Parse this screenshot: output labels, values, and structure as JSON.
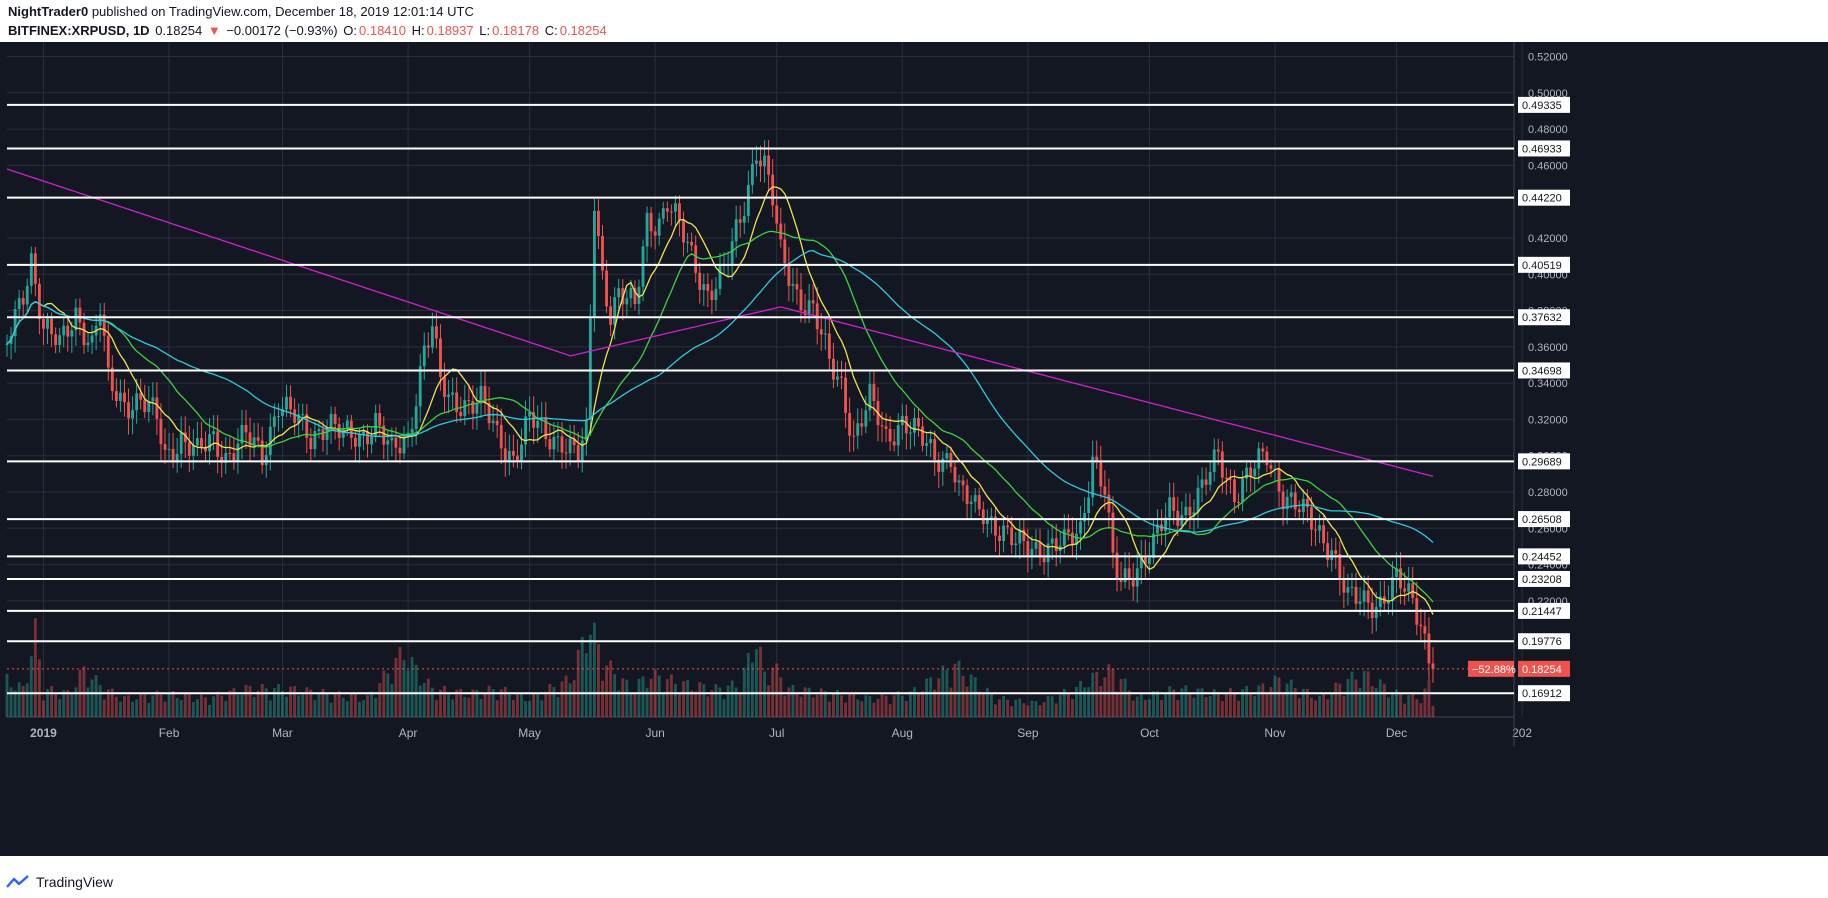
{
  "header": {
    "author": "NightTrader0",
    "published": "published on TradingView.com, December 18, 2019 12:01:14 UTC",
    "symbol": "BITFINEX:XRPUSD, 1D",
    "last": "0.18254",
    "arrow": "▼",
    "change": "−0.00172 (−0.93%)",
    "o_label": "O:",
    "o": "0.18410",
    "h_label": "H:",
    "h": "0.18937",
    "l_label": "L:",
    "l": "0.18178",
    "c_label": "C:",
    "c": "0.18254"
  },
  "footer": {
    "brand": "TradingView"
  },
  "colors": {
    "background": "#131722",
    "up": "#26a69a",
    "down": "#ef5350",
    "ma_fast": "#f2e24d",
    "ma_mid": "#3ed13e",
    "ma_slow": "#2ec9e0",
    "ma_long": "#d020d0",
    "level_line": "#ffffff",
    "price_label_bg": "#ef5350"
  },
  "chart_data": {
    "type": "candlestick",
    "ylim": [
      0.156,
      0.528
    ],
    "y_ticks": [
      "0.52000",
      "0.50000",
      "0.48000",
      "0.46000",
      "0.42000",
      "0.40000",
      "0.38000",
      "0.36000",
      "0.34000",
      "0.32000",
      "0.30000",
      "0.28000",
      "0.26000",
      "0.24000",
      "0.22000"
    ],
    "x_ticks": [
      "2019",
      "Feb",
      "Mar",
      "Apr",
      "May",
      "Jun",
      "Jul",
      "Aug",
      "Sep",
      "Oct",
      "Nov",
      "Dec",
      "202"
    ],
    "x_tick_days": [
      0,
      31,
      59,
      90,
      120,
      151,
      181,
      212,
      243,
      273,
      304,
      334,
      365
    ],
    "x_range_days": [
      -9,
      363
    ],
    "horizontal_levels": [
      "0.49335",
      "0.46933",
      "0.44220",
      "0.40519",
      "0.37632",
      "0.34698",
      "0.29689",
      "0.26508",
      "0.24452",
      "0.23208",
      "0.21447",
      "0.19776",
      "0.16912"
    ],
    "last_price_label": "0.18254",
    "change_label": "−52.88%",
    "price_path": [
      [
        -9,
        0.36
      ],
      [
        -5,
        0.39
      ],
      [
        -3,
        0.41
      ],
      [
        0,
        0.37
      ],
      [
        4,
        0.36
      ],
      [
        8,
        0.38
      ],
      [
        12,
        0.36
      ],
      [
        14,
        0.38
      ],
      [
        16,
        0.34
      ],
      [
        20,
        0.33
      ],
      [
        24,
        0.33
      ],
      [
        28,
        0.32
      ],
      [
        30,
        0.3
      ],
      [
        34,
        0.31
      ],
      [
        38,
        0.3
      ],
      [
        42,
        0.31
      ],
      [
        45,
        0.3
      ],
      [
        50,
        0.31
      ],
      [
        54,
        0.3
      ],
      [
        58,
        0.33
      ],
      [
        62,
        0.32
      ],
      [
        66,
        0.31
      ],
      [
        70,
        0.32
      ],
      [
        74,
        0.31
      ],
      [
        78,
        0.31
      ],
      [
        82,
        0.32
      ],
      [
        86,
        0.3
      ],
      [
        90,
        0.31
      ],
      [
        94,
        0.36
      ],
      [
        96,
        0.37
      ],
      [
        98,
        0.34
      ],
      [
        100,
        0.33
      ],
      [
        104,
        0.33
      ],
      [
        108,
        0.33
      ],
      [
        112,
        0.31
      ],
      [
        116,
        0.3
      ],
      [
        120,
        0.32
      ],
      [
        124,
        0.31
      ],
      [
        128,
        0.31
      ],
      [
        132,
        0.3
      ],
      [
        134,
        0.31
      ],
      [
        136,
        0.44
      ],
      [
        138,
        0.4
      ],
      [
        140,
        0.38
      ],
      [
        142,
        0.39
      ],
      [
        146,
        0.38
      ],
      [
        149,
        0.43
      ],
      [
        152,
        0.43
      ],
      [
        154,
        0.44
      ],
      [
        158,
        0.42
      ],
      [
        162,
        0.4
      ],
      [
        164,
        0.39
      ],
      [
        168,
        0.4
      ],
      [
        172,
        0.43
      ],
      [
        176,
        0.47
      ],
      [
        178,
        0.46
      ],
      [
        180,
        0.44
      ],
      [
        182,
        0.41
      ],
      [
        186,
        0.39
      ],
      [
        190,
        0.38
      ],
      [
        194,
        0.35
      ],
      [
        197,
        0.34
      ],
      [
        200,
        0.31
      ],
      [
        204,
        0.33
      ],
      [
        208,
        0.31
      ],
      [
        212,
        0.32
      ],
      [
        216,
        0.31
      ],
      [
        220,
        0.3
      ],
      [
        224,
        0.3
      ],
      [
        226,
        0.28
      ],
      [
        230,
        0.27
      ],
      [
        232,
        0.27
      ],
      [
        236,
        0.26
      ],
      [
        240,
        0.25
      ],
      [
        244,
        0.25
      ],
      [
        248,
        0.25
      ],
      [
        252,
        0.25
      ],
      [
        256,
        0.26
      ],
      [
        259,
        0.3
      ],
      [
        262,
        0.28
      ],
      [
        264,
        0.24
      ],
      [
        266,
        0.23
      ],
      [
        270,
        0.24
      ],
      [
        274,
        0.25
      ],
      [
        278,
        0.27
      ],
      [
        282,
        0.27
      ],
      [
        286,
        0.28
      ],
      [
        290,
        0.3
      ],
      [
        294,
        0.28
      ],
      [
        298,
        0.29
      ],
      [
        302,
        0.3
      ],
      [
        306,
        0.28
      ],
      [
        310,
        0.27
      ],
      [
        314,
        0.26
      ],
      [
        318,
        0.25
      ],
      [
        322,
        0.22
      ],
      [
        326,
        0.22
      ],
      [
        330,
        0.22
      ],
      [
        334,
        0.23
      ],
      [
        338,
        0.22
      ],
      [
        340,
        0.21
      ],
      [
        342,
        0.19
      ],
      [
        343,
        0.18254
      ]
    ],
    "volume": [
      [
        -9,
        0.4
      ],
      [
        -5,
        0.3
      ],
      [
        -2,
        0.9
      ],
      [
        0,
        0.3
      ],
      [
        6,
        0.25
      ],
      [
        10,
        0.5
      ],
      [
        15,
        0.3
      ],
      [
        20,
        0.2
      ],
      [
        30,
        0.25
      ],
      [
        40,
        0.2
      ],
      [
        50,
        0.3
      ],
      [
        60,
        0.3
      ],
      [
        70,
        0.25
      ],
      [
        80,
        0.2
      ],
      [
        89,
        0.7
      ],
      [
        92,
        0.5
      ],
      [
        96,
        0.3
      ],
      [
        105,
        0.25
      ],
      [
        112,
        0.3
      ],
      [
        120,
        0.2
      ],
      [
        130,
        0.4
      ],
      [
        135,
        1.0
      ],
      [
        138,
        0.6
      ],
      [
        145,
        0.3
      ],
      [
        150,
        0.45
      ],
      [
        158,
        0.35
      ],
      [
        166,
        0.3
      ],
      [
        172,
        0.35
      ],
      [
        176,
        0.85
      ],
      [
        178,
        0.45
      ],
      [
        180,
        0.55
      ],
      [
        184,
        0.3
      ],
      [
        195,
        0.25
      ],
      [
        204,
        0.2
      ],
      [
        214,
        0.25
      ],
      [
        225,
        0.55
      ],
      [
        235,
        0.2
      ],
      [
        245,
        0.15
      ],
      [
        255,
        0.3
      ],
      [
        258,
        0.4
      ],
      [
        264,
        0.5
      ],
      [
        270,
        0.2
      ],
      [
        280,
        0.3
      ],
      [
        290,
        0.25
      ],
      [
        300,
        0.3
      ],
      [
        305,
        0.4
      ],
      [
        315,
        0.2
      ],
      [
        322,
        0.4
      ],
      [
        326,
        0.45
      ],
      [
        334,
        0.25
      ],
      [
        340,
        0.2
      ],
      [
        342,
        0.35
      ],
      [
        343,
        0.15
      ]
    ]
  }
}
